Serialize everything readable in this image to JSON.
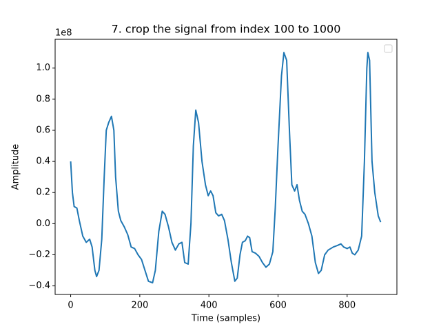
{
  "chart_data": {
    "type": "line",
    "title": "7. crop the signal from index 100 to 1000",
    "xlabel": "Time (samples)",
    "ylabel": "Amplitude",
    "y_offset_label": "1e8",
    "color": "#1f77b4",
    "legend": "upper right",
    "grid": false,
    "x": [
      0,
      5,
      10,
      18,
      25,
      35,
      45,
      55,
      62,
      70,
      75,
      82,
      90,
      97,
      103,
      110,
      118,
      125,
      130,
      138,
      145,
      155,
      165,
      175,
      185,
      195,
      205,
      215,
      225,
      237,
      245,
      255,
      265,
      273,
      283,
      293,
      303,
      313,
      322,
      330,
      340,
      348,
      355,
      362,
      370,
      380,
      390,
      398,
      405,
      412,
      420,
      428,
      437,
      445,
      455,
      465,
      475,
      482,
      490,
      497,
      505,
      512,
      518,
      525,
      535,
      545,
      555,
      565,
      575,
      585,
      592,
      600,
      610,
      617,
      625,
      633,
      640,
      648,
      655,
      662,
      670,
      678,
      688,
      698,
      708,
      717,
      725,
      735,
      745,
      760,
      772,
      782,
      790,
      800,
      808,
      815,
      822,
      832,
      842,
      850,
      857,
      860,
      865,
      872,
      880,
      890,
      897
    ],
    "values": [
      0.4,
      0.2,
      0.11,
      0.1,
      0.02,
      -0.08,
      -0.12,
      -0.1,
      -0.15,
      -0.3,
      -0.34,
      -0.3,
      -0.1,
      0.3,
      0.6,
      0.65,
      0.69,
      0.6,
      0.3,
      0.08,
      0.02,
      -0.02,
      -0.07,
      -0.15,
      -0.16,
      -0.2,
      -0.23,
      -0.3,
      -0.37,
      -0.38,
      -0.3,
      -0.05,
      0.08,
      0.06,
      -0.02,
      -0.12,
      -0.17,
      -0.13,
      -0.12,
      -0.25,
      -0.26,
      0.0,
      0.5,
      0.73,
      0.65,
      0.4,
      0.25,
      0.18,
      0.21,
      0.18,
      0.07,
      0.05,
      0.06,
      0.02,
      -0.1,
      -0.25,
      -0.37,
      -0.35,
      -0.2,
      -0.12,
      -0.11,
      -0.08,
      -0.09,
      -0.18,
      -0.19,
      -0.21,
      -0.25,
      -0.28,
      -0.26,
      -0.18,
      0.1,
      0.5,
      0.95,
      1.1,
      1.05,
      0.6,
      0.25,
      0.21,
      0.25,
      0.15,
      0.08,
      0.06,
      0.0,
      -0.08,
      -0.25,
      -0.32,
      -0.3,
      -0.2,
      -0.17,
      -0.15,
      -0.14,
      -0.13,
      -0.15,
      -0.16,
      -0.15,
      -0.19,
      -0.2,
      -0.17,
      -0.08,
      0.4,
      1.0,
      1.1,
      1.05,
      0.4,
      0.2,
      0.05,
      0.01
    ],
    "xlim": [
      -45,
      944
    ],
    "xticks": [
      0,
      200,
      400,
      600,
      800
    ],
    "ylim": [
      -0.455,
      1.185
    ],
    "yticks": [
      {
        "value": -0.4,
        "label": "−0.4"
      },
      {
        "value": -0.2,
        "label": "−0.2"
      },
      {
        "value": 0,
        "label": "0.0"
      },
      0.2,
      0.4,
      0.6,
      0.8,
      {
        "value": 1,
        "label": "1.0"
      }
    ]
  }
}
